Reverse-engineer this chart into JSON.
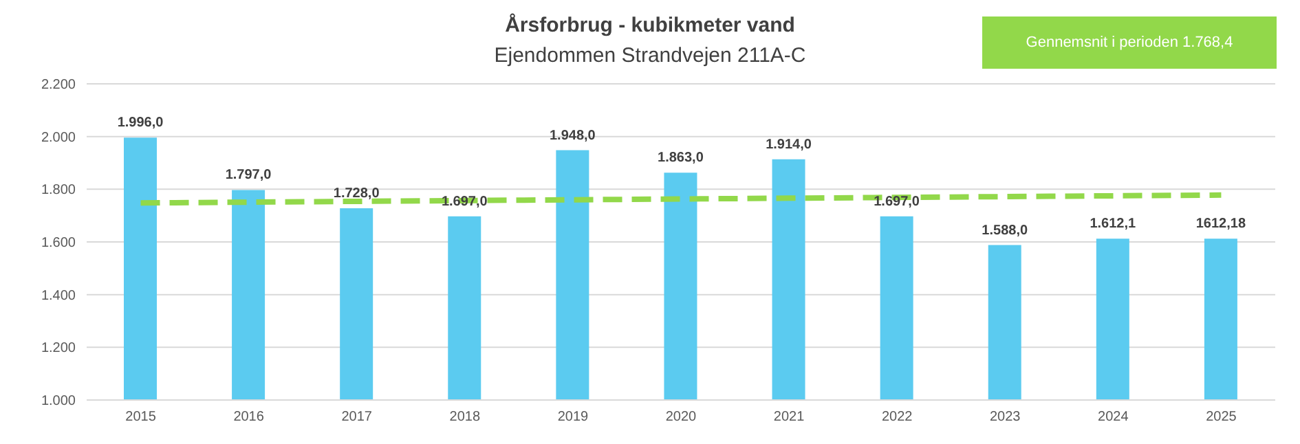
{
  "chart_data": {
    "type": "bar",
    "title": "Årsforbrug - kubikmeter vand",
    "subtitle": "Ejendommen Strandvejen 211A-C",
    "annotations": [
      "Gennemsnit i perioden 1.768,4"
    ],
    "categories": [
      "2015",
      "2016",
      "2017",
      "2018",
      "2019",
      "2020",
      "2021",
      "2022",
      "2023",
      "2024",
      "2025"
    ],
    "series": [
      {
        "color": "#5bcbf0",
        "values": [
          1996,
          1797,
          1728,
          1697,
          1948,
          1863,
          1914,
          1697,
          1588,
          1612.1,
          1612.18
        ],
        "value_labels": [
          "1.996,0",
          "1.797,0",
          "1.728,0",
          "1.697,0",
          "1.948,0",
          "1.863,0",
          "1.914,0",
          "1.697,0",
          "1.588,0",
          "1.612,1",
          "1612,18"
        ]
      },
      {
        "type": "line",
        "color": "#92d84a",
        "line_style": "dashed",
        "marker": "none",
        "values": [
          1748,
          1751,
          1754,
          1757,
          1760,
          1763,
          1766,
          1769,
          1772,
          1775,
          1778
        ]
      }
    ],
    "ylim": [
      1000,
      2200
    ],
    "yticks": [
      {
        "value": 1000,
        "label": "1.000"
      },
      {
        "value": 1200,
        "label": "1.200"
      },
      {
        "value": 1400,
        "label": "1.400"
      },
      {
        "value": 1600,
        "label": "1.600"
      },
      {
        "value": 1800,
        "label": "1.800"
      },
      {
        "value": 2000,
        "label": "2.000"
      },
      {
        "value": 2200,
        "label": "2.200"
      }
    ],
    "grid": "y"
  }
}
